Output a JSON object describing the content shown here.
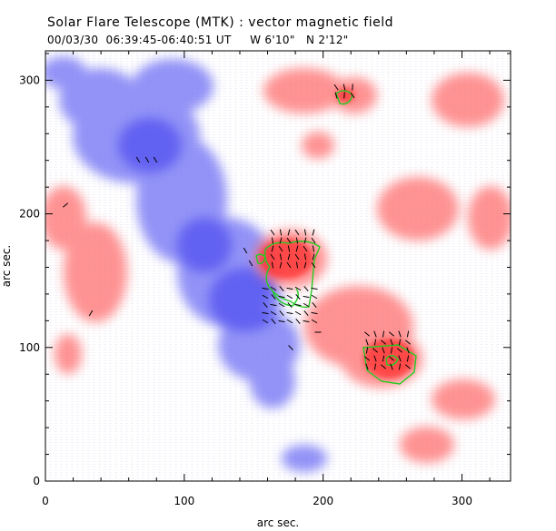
{
  "header": {
    "title": "Solar Flare Telescope (MTK) : vector magnetic field",
    "subtitle": "00/03/30  06:39:45-06:40:51 UT     W 6'10\"   N 2'12\""
  },
  "chart_data": {
    "type": "heatmap",
    "xlabel": "arc sec.",
    "ylabel": "arc sec.",
    "xlim": [
      0,
      335
    ],
    "ylim": [
      0,
      322
    ],
    "xticks": [
      "0",
      "100",
      "200",
      "300"
    ],
    "yticks": [
      "0",
      "100",
      "200",
      "300"
    ],
    "colors": {
      "positive": "#ff4040",
      "negative": "#4040ff",
      "contour": "#22cc22",
      "vectors": "#000000"
    }
  }
}
